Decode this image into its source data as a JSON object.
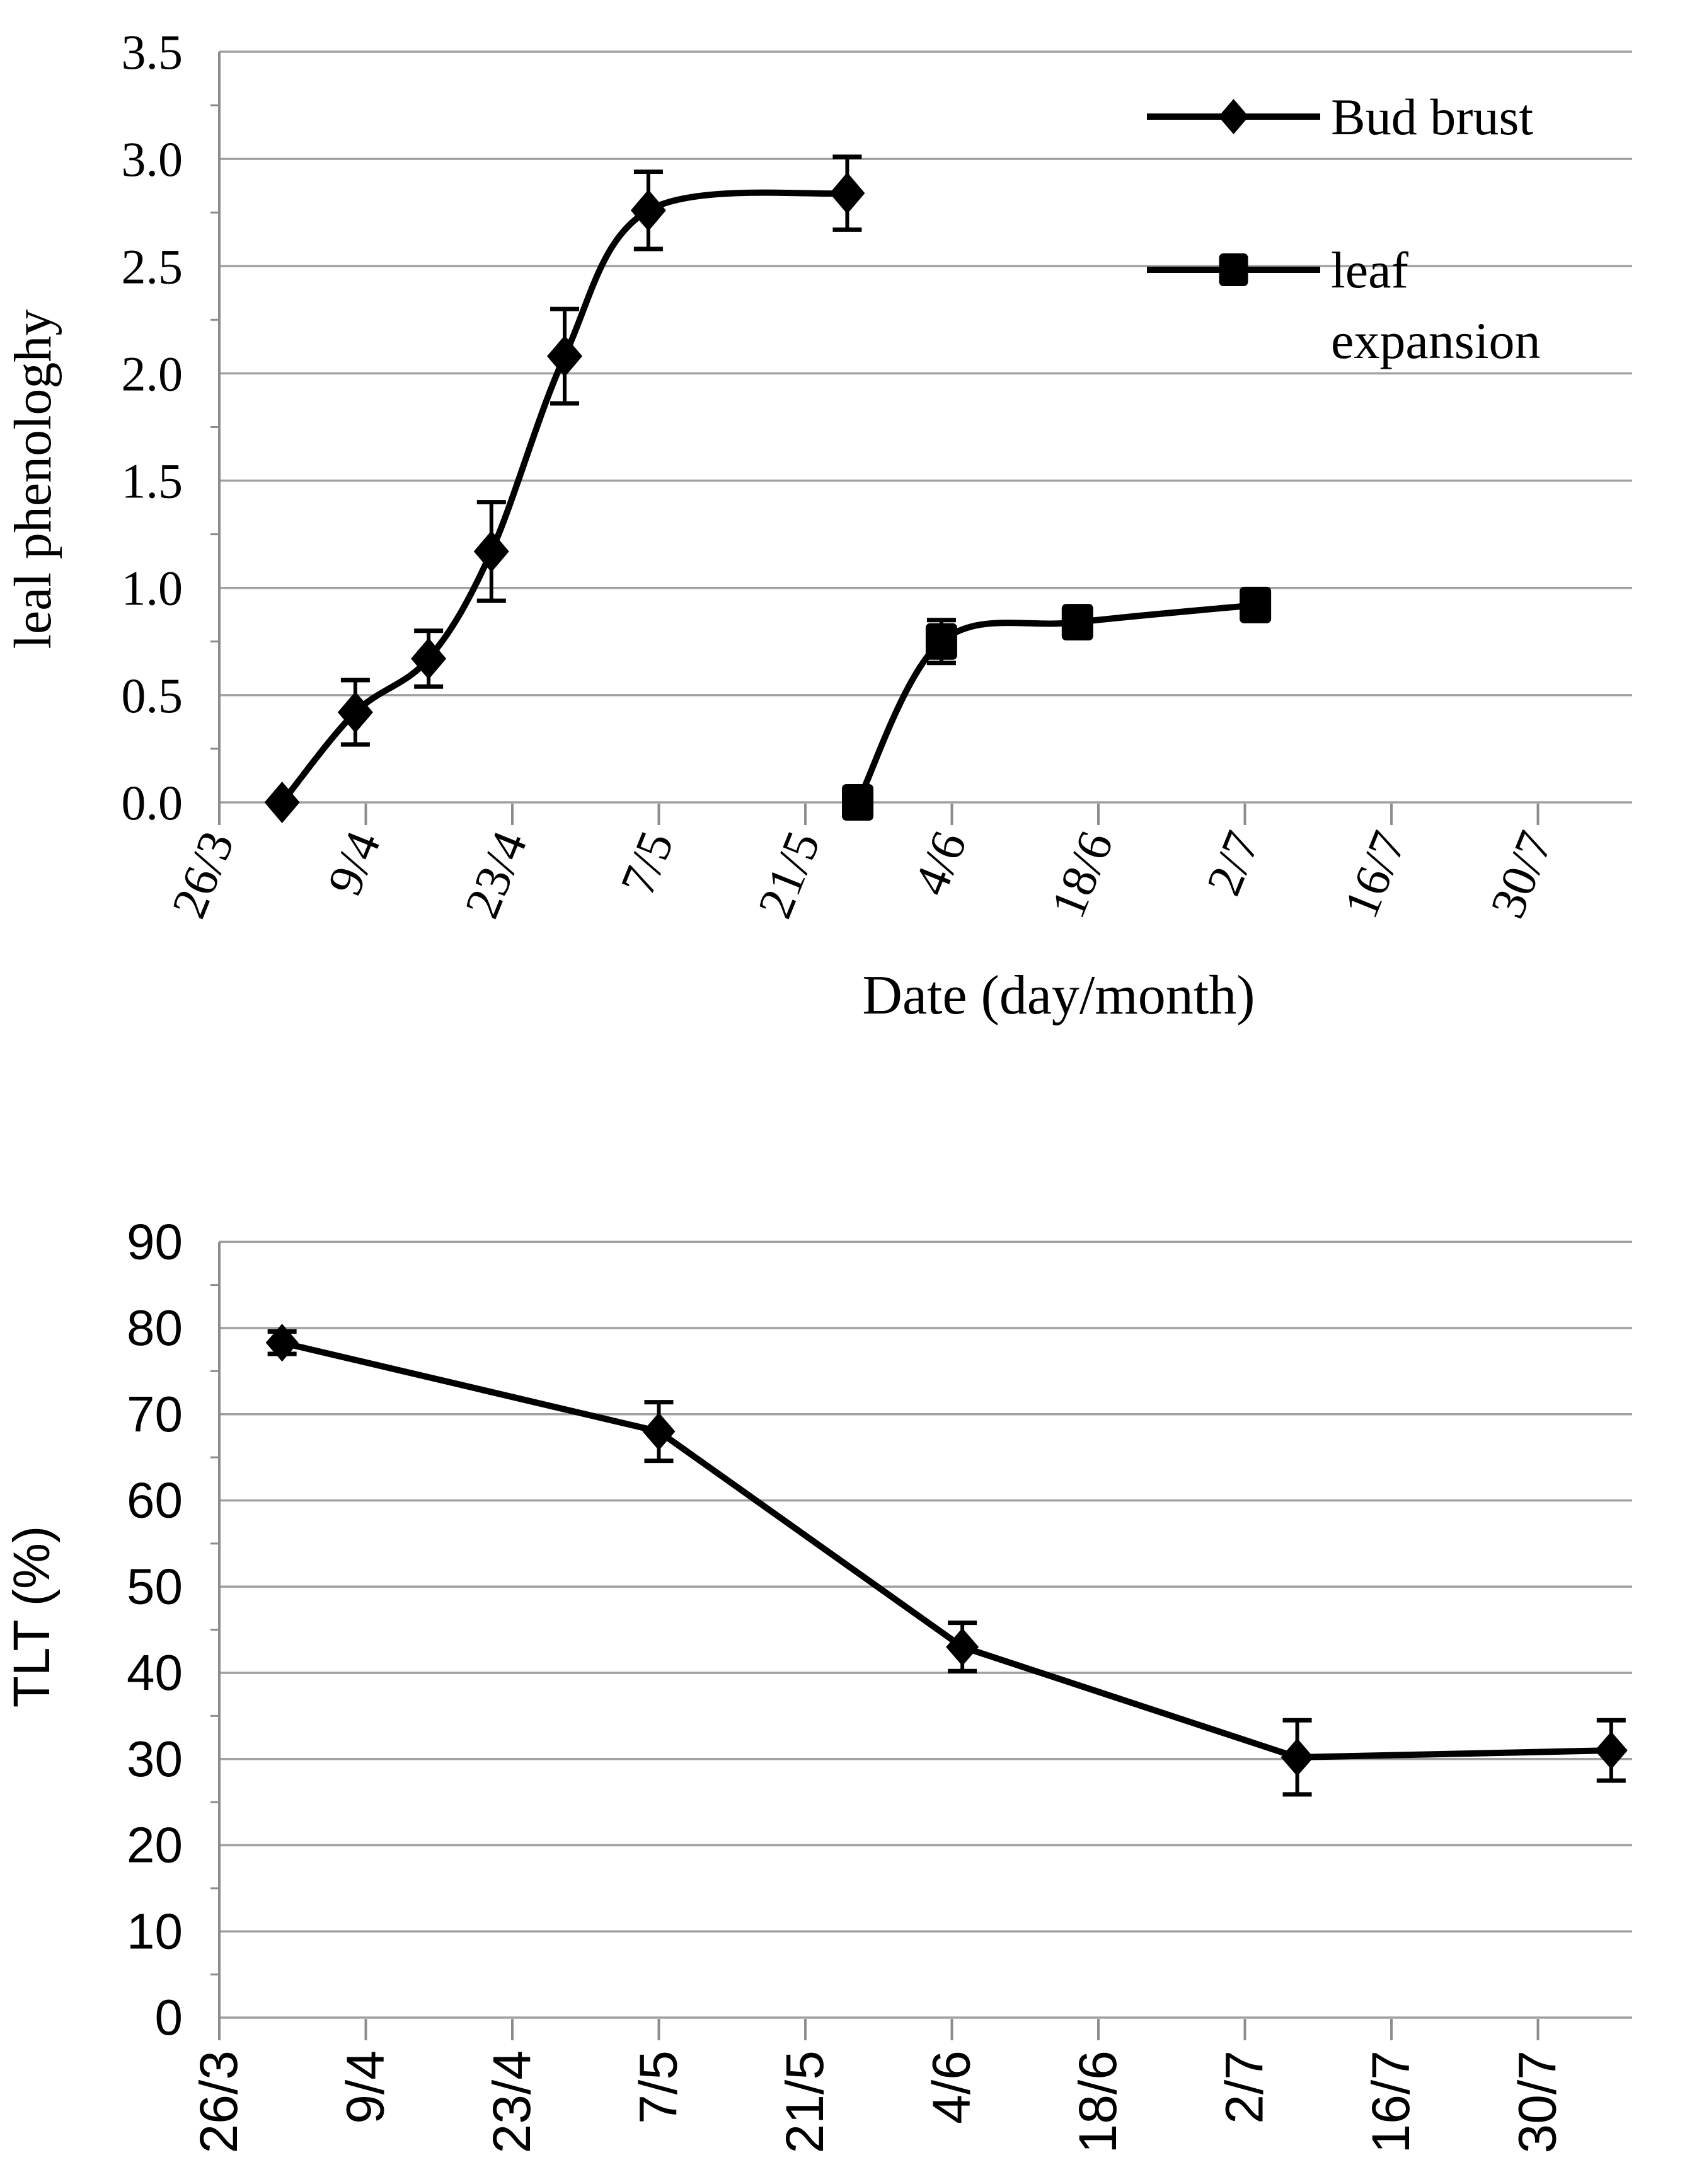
{
  "page": {
    "background": "#ffffff"
  },
  "colors": {
    "series": "#000000",
    "grid": "#a0a0a0",
    "axis": "#8c8c8c",
    "text": "#000000"
  },
  "chart_data": [
    {
      "type": "line",
      "panel": "top",
      "title": "",
      "ylabel": "leal phenologhy",
      "xlabel": "Date (day/month)",
      "ylim": [
        0,
        3.5
      ],
      "y_tick_step": 0.5,
      "y_minor_tick_step": 0.25,
      "y_tick_labels": [
        "0.0",
        "0.5",
        "1.0",
        "1.5",
        "2.0",
        "2.5",
        "3.0",
        "3.5"
      ],
      "x_tick_labels": [
        "26/3",
        "9/4",
        "23/4",
        "7/5",
        "21/5",
        "4/6",
        "18/6",
        "2/7",
        "16/7",
        "30/7"
      ],
      "x_tick_days": [
        0,
        14,
        28,
        42,
        56,
        70,
        84,
        98,
        112,
        126
      ],
      "xlim_days": [
        0,
        135
      ],
      "grid": "horizontal",
      "legend_position": "top-right-inside",
      "series": [
        {
          "name": "Bud brust",
          "label_lines": [
            "Bud brust"
          ],
          "marker": "diamond",
          "smooth": true,
          "points": [
            {
              "day": 6,
              "value": 0.0,
              "error": 0
            },
            {
              "day": 13,
              "value": 0.42,
              "error": 0.15
            },
            {
              "day": 20,
              "value": 0.67,
              "error": 0.13
            },
            {
              "day": 26,
              "value": 1.17,
              "error": 0.23
            },
            {
              "day": 33,
              "value": 2.08,
              "error": 0.22
            },
            {
              "day": 41,
              "value": 2.76,
              "error": 0.18
            },
            {
              "day": 60,
              "value": 2.84,
              "error": 0.17
            }
          ]
        },
        {
          "name": "leaf expansion",
          "label_lines": [
            "leaf",
            "expansion"
          ],
          "marker": "square",
          "smooth": true,
          "points": [
            {
              "day": 61,
              "value": 0.0,
              "error": 0
            },
            {
              "day": 69,
              "value": 0.75,
              "error": 0.1
            },
            {
              "day": 82,
              "value": 0.84,
              "error": 0.06
            },
            {
              "day": 99,
              "value": 0.92,
              "error": 0.06
            }
          ]
        }
      ]
    },
    {
      "type": "line",
      "panel": "bottom",
      "title": "",
      "ylabel": "TLT (%)",
      "xlabel": "",
      "ylim": [
        0,
        90
      ],
      "y_tick_step": 10,
      "y_minor_tick_step": 5,
      "y_tick_labels": [
        "0",
        "10",
        "20",
        "30",
        "40",
        "50",
        "60",
        "70",
        "80",
        "90"
      ],
      "x_tick_labels": [
        "26/3",
        "9/4",
        "23/4",
        "7/5",
        "21/5",
        "4/6",
        "18/6",
        "2/7",
        "16/7",
        "30/7"
      ],
      "x_tick_days": [
        0,
        14,
        28,
        42,
        56,
        70,
        84,
        98,
        112,
        126
      ],
      "xlim_days": [
        0,
        135
      ],
      "grid": "horizontal",
      "legend_position": "none",
      "series": [
        {
          "name": "TLT",
          "label_lines": [],
          "marker": "diamond",
          "smooth": false,
          "points": [
            {
              "day": 6,
              "value": 78.3,
              "error": 1.3
            },
            {
              "day": 42,
              "value": 68.0,
              "error": 3.4
            },
            {
              "day": 71,
              "value": 43.0,
              "error": 2.8
            },
            {
              "day": 103,
              "value": 30.2,
              "error": 4.3
            },
            {
              "day": 133,
              "value": 31.0,
              "error": 3.5
            }
          ]
        }
      ]
    }
  ]
}
